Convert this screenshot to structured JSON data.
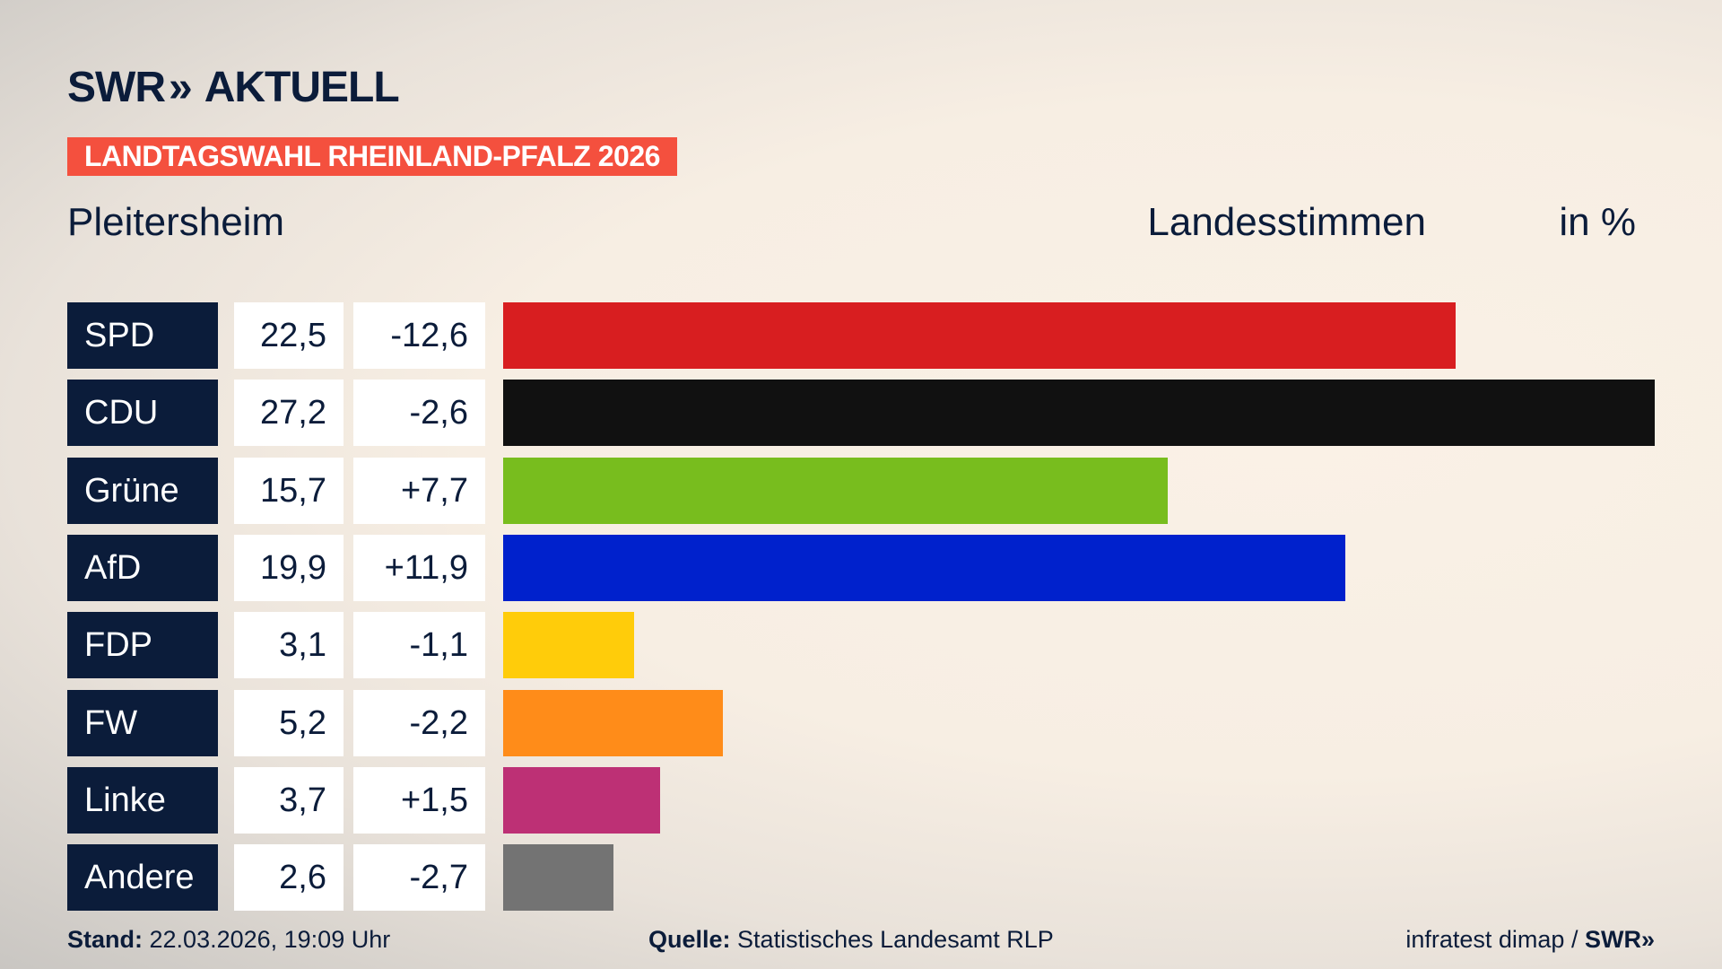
{
  "header": {
    "logo_text": "SWR",
    "logo_suffix": "AKTUELL",
    "tag": "LANDTAGSWAHL RHEINLAND-PFALZ 2026",
    "region": "Pleitersheim",
    "measure": "Landesstimmen",
    "unit": "in %"
  },
  "chart_data": {
    "type": "bar",
    "orientation": "horizontal",
    "categories": [
      "SPD",
      "CDU",
      "Grüne",
      "AfD",
      "FDP",
      "FW",
      "Linke",
      "Andere"
    ],
    "values": [
      22.5,
      27.2,
      15.7,
      19.9,
      3.1,
      5.2,
      3.7,
      2.6
    ],
    "values_label": [
      "22,5",
      "27,2",
      "15,7",
      "19,9",
      "3,1",
      "5,2",
      "3,7",
      "2,6"
    ],
    "changes_label": [
      "-12,6",
      "-2,6",
      "+7,7",
      "+11,9",
      "-1,1",
      "-2,2",
      "+1,5",
      "-2,7"
    ],
    "changes": [
      -12.6,
      -2.6,
      7.7,
      11.9,
      -1.1,
      -2.2,
      1.5,
      -2.7
    ],
    "colors": [
      "#d81e20",
      "#111111",
      "#78bd1e",
      "#0021cc",
      "#ffcc0a",
      "#ff8c19",
      "#bd3075",
      "#737373"
    ],
    "xlim": [
      0,
      27.2
    ]
  },
  "footer": {
    "stand_label": "Stand:",
    "stand_value": "22.03.2026, 19:09 Uhr",
    "source_label": "Quelle:",
    "source_value": "Statistisches Landesamt RLP",
    "credit": "infratest dimap /",
    "credit_logo": "SWR"
  }
}
